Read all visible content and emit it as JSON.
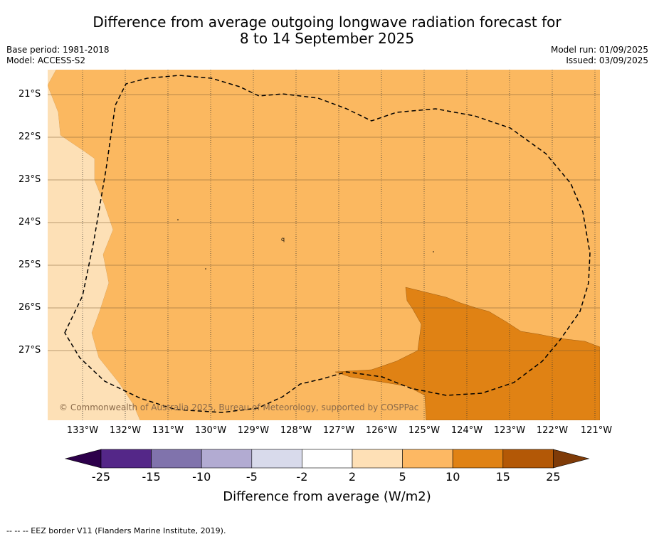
{
  "title": {
    "line1": "Difference from average outgoing longwave radiation forecast for",
    "line2": "8 to 14 September 2025"
  },
  "meta": {
    "base_period": "Base period: 1981-2018",
    "model": "Model: ACCESS-S2",
    "model_run": "Model run: 01/09/2025",
    "issued": "Issued: 03/09/2025"
  },
  "map": {
    "lat_labels": [
      "21°S",
      "22°S",
      "23°S",
      "24°S",
      "25°S",
      "26°S",
      "27°S"
    ],
    "lon_labels": [
      "133°W",
      "132°W",
      "131°W",
      "130°W",
      "129°W",
      "128°W",
      "127°W",
      "126°W",
      "125°W",
      "124°W",
      "123°W",
      "122°W",
      "121°W"
    ],
    "copyright": "© Commonwealth of Australia 2025, Bureau of Meteorology, supported by COSPPac",
    "colors": {
      "band_2_5": "#fde0b6",
      "band_5_10": "#fbb860",
      "band_10_15": "#e08214",
      "eez_line": "#000000"
    }
  },
  "colorbar": {
    "ticks": [
      "-25",
      "-15",
      "-10",
      "-5",
      "-2",
      "2",
      "5",
      "10",
      "15",
      "25"
    ],
    "colors": [
      "#2d004b",
      "#542788",
      "#8073ac",
      "#b2abd2",
      "#d8daeb",
      "#ffffff",
      "#fee0b6",
      "#fdb863",
      "#e08214",
      "#b35806",
      "#7f3b08"
    ],
    "label": "Difference from average (W/m2)"
  },
  "footnote": "--  --  -- EEZ border V11 (Flanders Marine Institute, 2019)."
}
